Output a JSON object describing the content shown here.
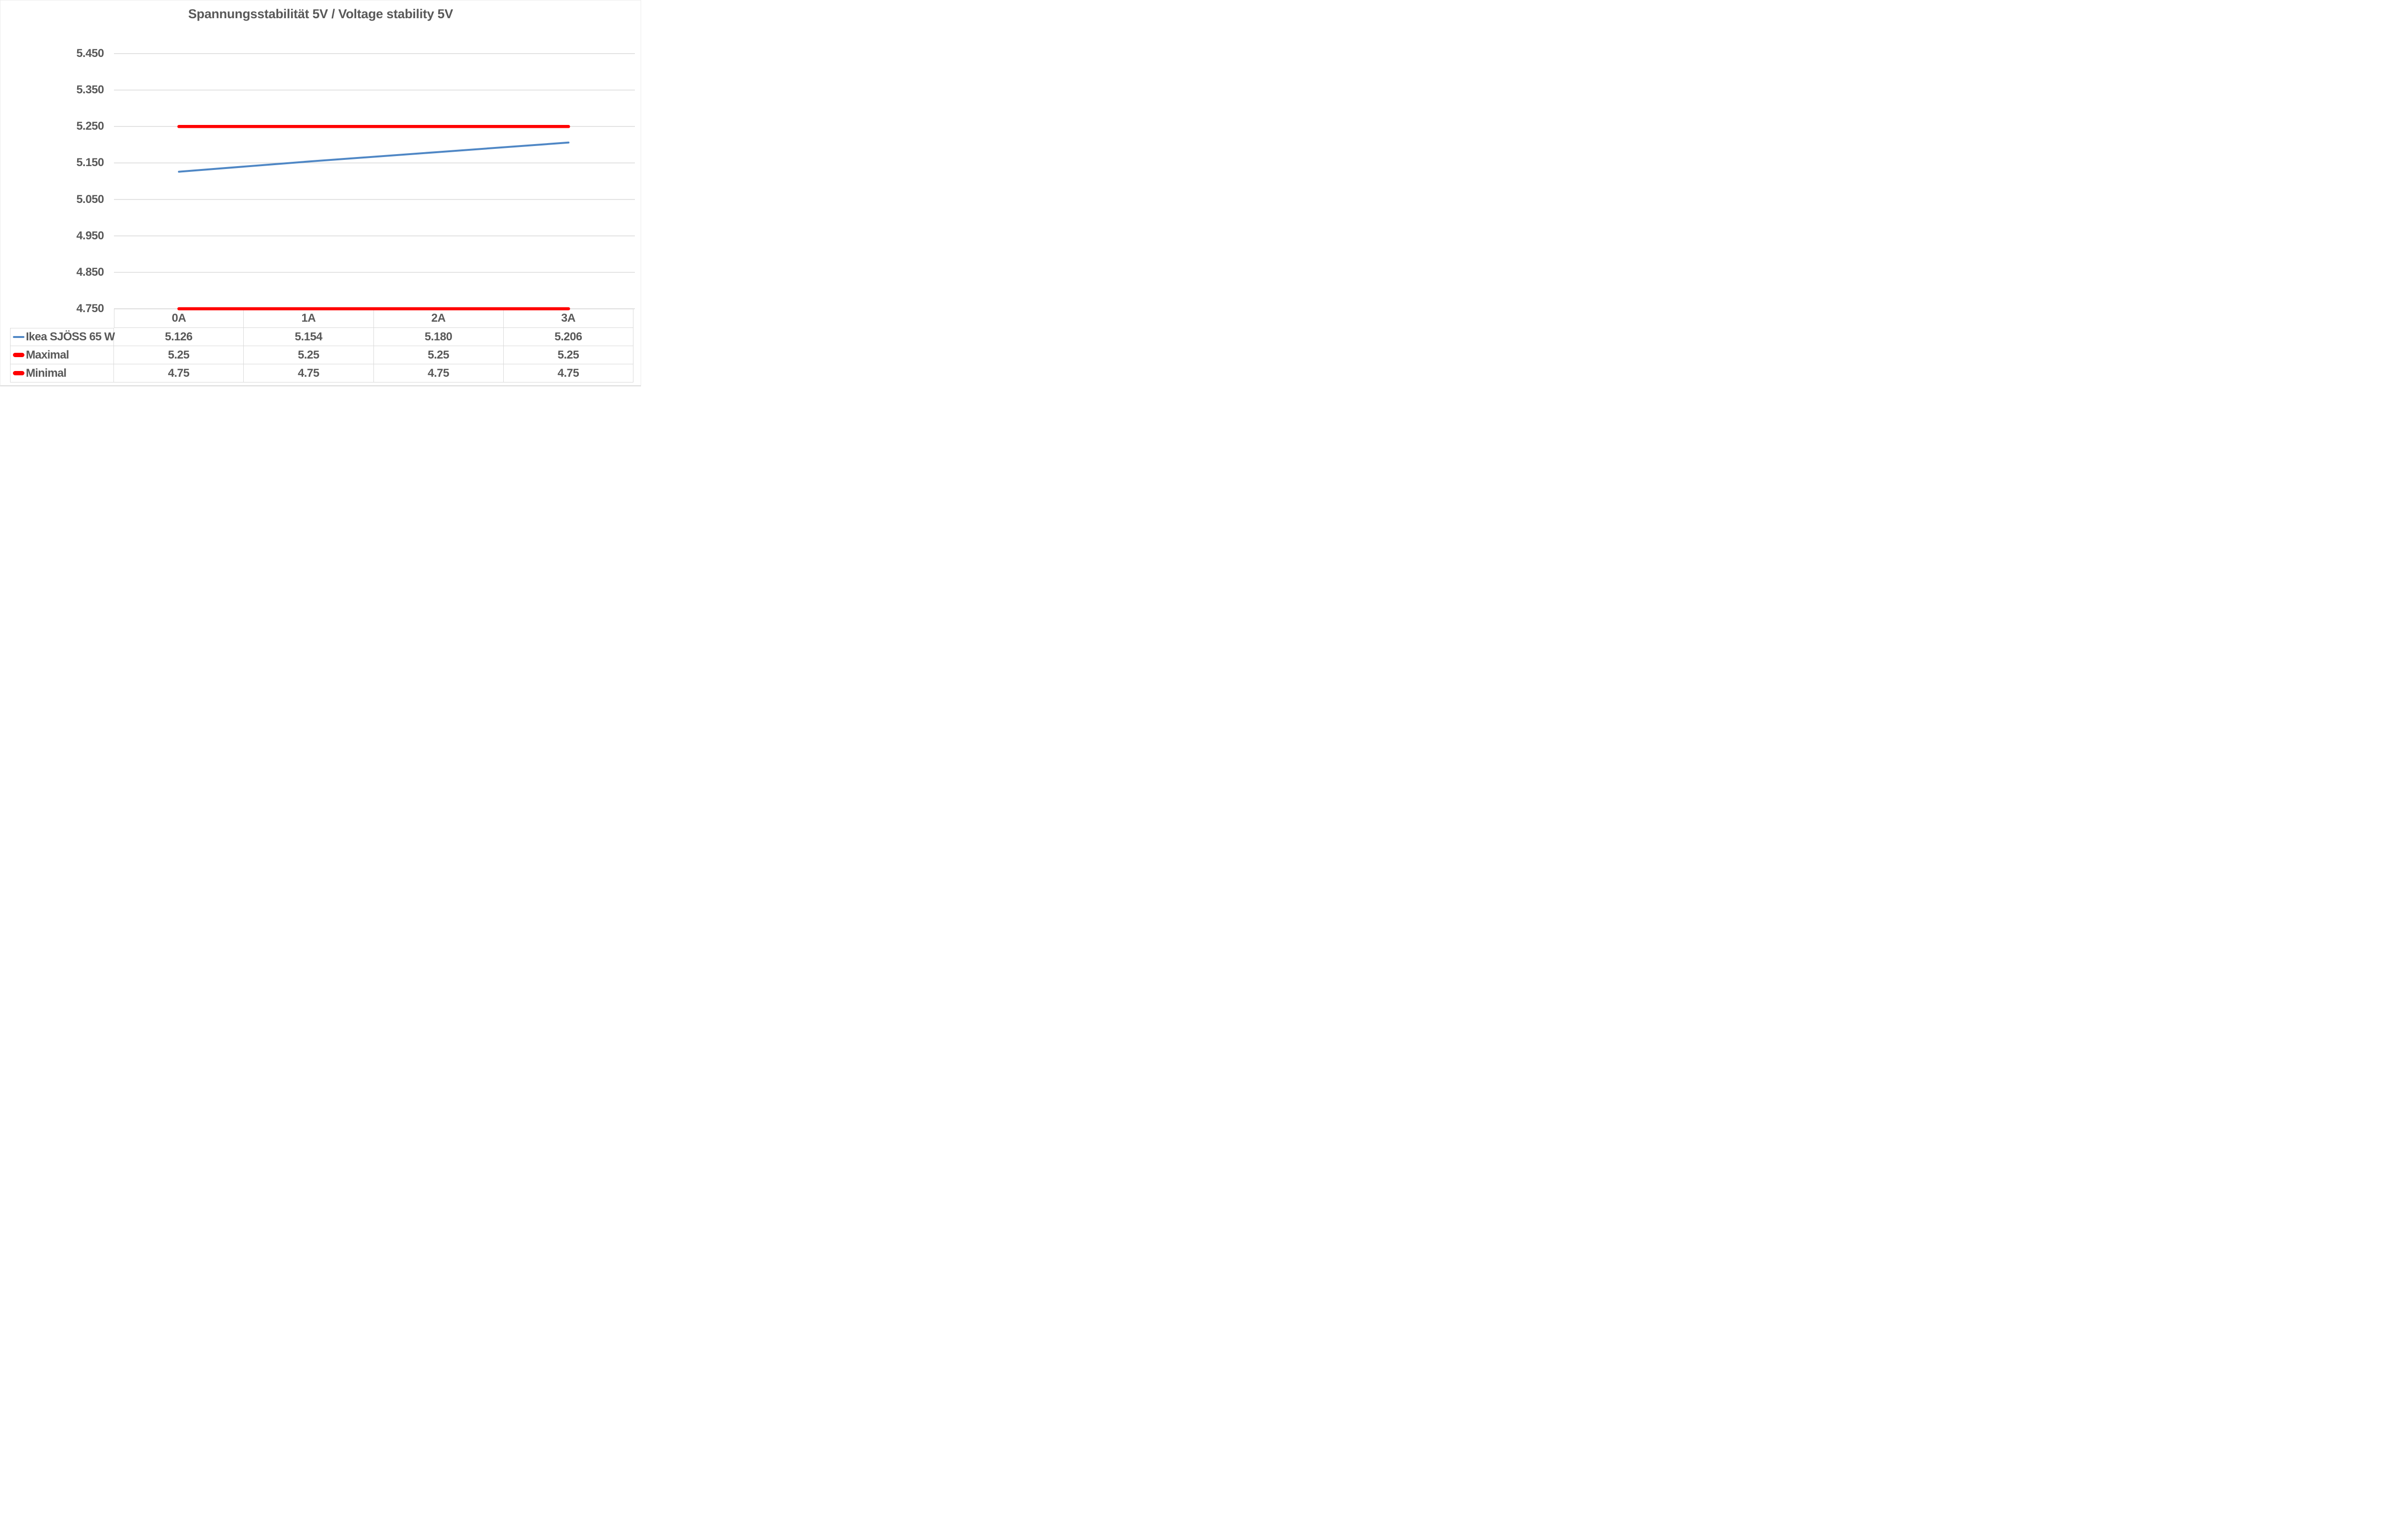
{
  "title": "Spannungsstabilität 5V / Voltage stability 5V",
  "colors": {
    "series_blue": "#4F87C5",
    "limit_red": "#FF0000",
    "text_gray": "#595959",
    "gridline_gray": "#D9D9D9"
  },
  "chart_data": {
    "type": "line",
    "title": "Spannungsstabilität 5V / Voltage stability 5V",
    "xlabel": "",
    "ylabel": "",
    "categories": [
      "0A",
      "1A",
      "2A",
      "3A"
    ],
    "series": [
      {
        "name": "Ikea SJÖSS 65 W",
        "values": [
          5.126,
          5.154,
          5.18,
          5.206
        ],
        "display": [
          "5.126",
          "5.154",
          "5.180",
          "5.206"
        ],
        "color": "#4F87C5",
        "weight": "thin"
      },
      {
        "name": "Maximal",
        "values": [
          5.25,
          5.25,
          5.25,
          5.25
        ],
        "display": [
          "5.25",
          "5.25",
          "5.25",
          "5.25"
        ],
        "color": "#FF0000",
        "weight": "thick"
      },
      {
        "name": "Minimal",
        "values": [
          4.75,
          4.75,
          4.75,
          4.75
        ],
        "display": [
          "4.75",
          "4.75",
          "4.75",
          "4.75"
        ],
        "color": "#FF0000",
        "weight": "thick"
      }
    ],
    "ylim": [
      4.75,
      5.45
    ],
    "y_ticks": [
      "5.450",
      "5.350",
      "5.250",
      "5.150",
      "5.050",
      "4.950",
      "4.850",
      "4.750"
    ],
    "grid": true,
    "legend_position": "table-left"
  }
}
